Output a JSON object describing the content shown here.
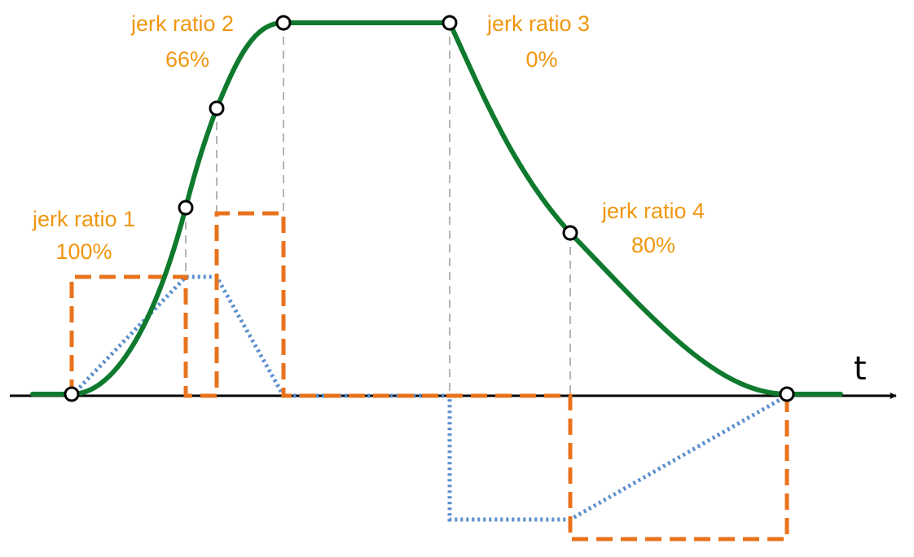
{
  "axis": {
    "label": "t"
  },
  "annotations": [
    {
      "name": "jerk ratio 1",
      "value": "100%"
    },
    {
      "name": "jerk ratio 2",
      "value": "66%"
    },
    {
      "name": "jerk ratio 3",
      "value": "0%"
    },
    {
      "name": "jerk ratio 4",
      "value": "80%"
    }
  ],
  "colors": {
    "velocity": "#0f7a2e",
    "acceleration": "#5b8fce",
    "jerk": "#e8731c",
    "guides": "#b4b4b4",
    "labels": "#f0960f",
    "axis": "#000000"
  }
}
